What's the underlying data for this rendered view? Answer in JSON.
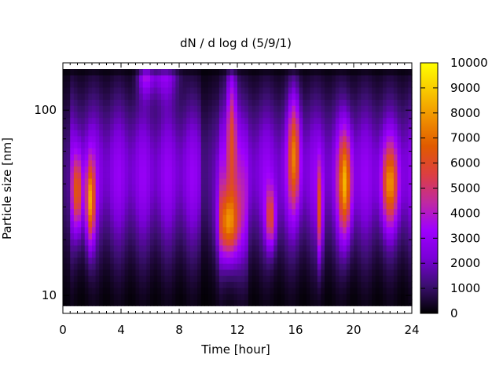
{
  "chart_data": {
    "type": "heatmap",
    "title": "dN / d log d (5/9/1)",
    "xlabel": "Time [hour]",
    "ylabel": "Particle size [nm]",
    "xlim": [
      0,
      24
    ],
    "ylim": [
      8,
      180
    ],
    "y_scale": "log",
    "x_ticks": [
      0,
      4,
      8,
      12,
      16,
      20,
      24
    ],
    "x_tick_labels": [
      "0",
      "4",
      "8",
      "12",
      "16",
      "20",
      "24"
    ],
    "y_ticks": [
      10,
      100
    ],
    "y_tick_labels": [
      "10",
      "100"
    ],
    "colorbar": {
      "range": [
        0,
        10000
      ],
      "ticks": [
        0,
        1000,
        2000,
        3000,
        4000,
        5000,
        6000,
        7000,
        8000,
        9000,
        10000
      ],
      "tick_labels": [
        "0",
        "1000",
        "2000",
        "3000",
        "4000",
        "5000",
        "6000",
        "7000",
        "8000",
        "9000",
        "10000"
      ],
      "palette": [
        "#000000",
        "#3b0f70",
        "#7a00d8",
        "#9f00ff",
        "#c02aa0",
        "#dd3f40",
        "#e05a00",
        "#f09000",
        "#f8c800",
        "#ffff00"
      ]
    },
    "features": [
      {
        "t": 1.0,
        "d": 36,
        "peak": 6000,
        "tw": 0.35,
        "dw": 0.2
      },
      {
        "t": 1.9,
        "d": 32,
        "peak": 7500,
        "tw": 0.3,
        "dw": 0.22
      },
      {
        "t": 5.7,
        "d": 170,
        "peak": 4300,
        "tw": 0.5,
        "dw": 0.14
      },
      {
        "t": 7.0,
        "d": 170,
        "peak": 3600,
        "tw": 0.9,
        "dw": 0.16
      },
      {
        "t": 11.4,
        "d": 24,
        "peak": 6800,
        "tw": 0.7,
        "dw": 0.18
      },
      {
        "t": 11.6,
        "d": 80,
        "peak": 5500,
        "tw": 0.35,
        "dw": 0.35
      },
      {
        "t": 14.3,
        "d": 26,
        "peak": 5200,
        "tw": 0.35,
        "dw": 0.16
      },
      {
        "t": 15.9,
        "d": 60,
        "peak": 6300,
        "tw": 0.4,
        "dw": 0.3
      },
      {
        "t": 17.7,
        "d": 28,
        "peak": 6500,
        "tw": 0.15,
        "dw": 0.25
      },
      {
        "t": 19.4,
        "d": 40,
        "peak": 7600,
        "tw": 0.45,
        "dw": 0.28
      },
      {
        "t": 22.5,
        "d": 40,
        "peak": 6400,
        "tw": 0.55,
        "dw": 0.22
      }
    ]
  }
}
